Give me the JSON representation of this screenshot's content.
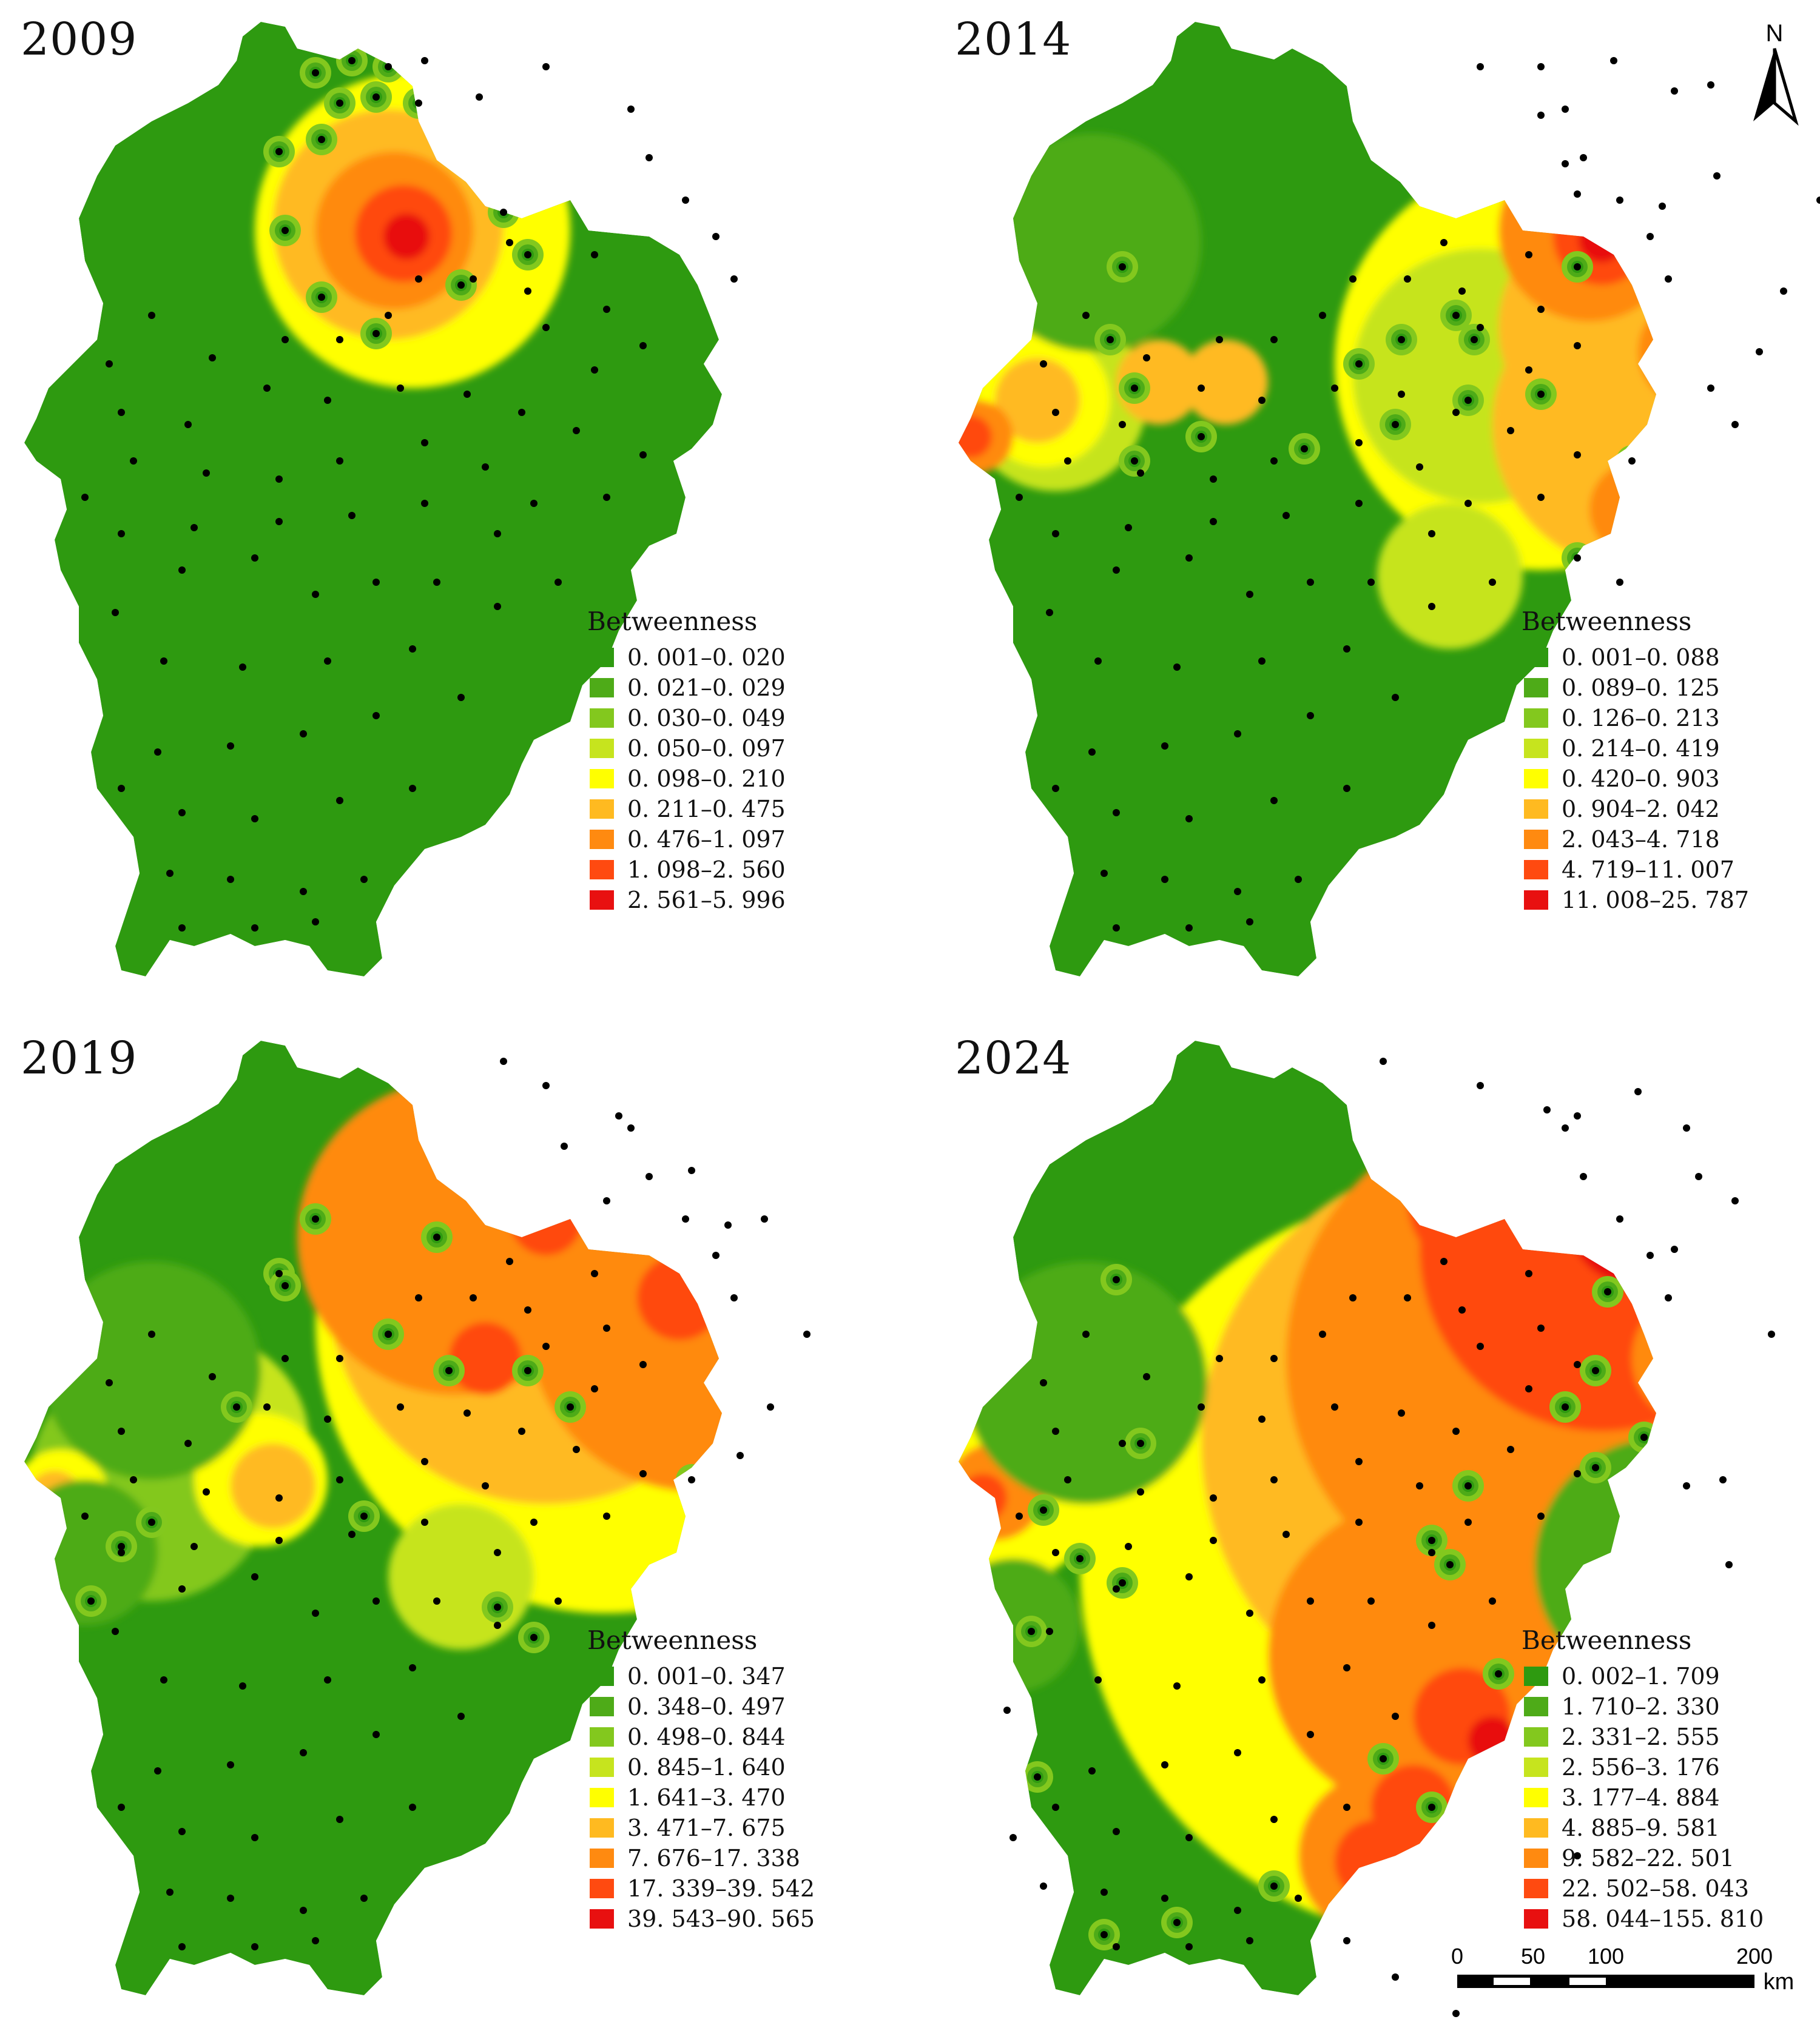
{
  "legend_title": "Betweenness",
  "colors": [
    "#2e9a10",
    "#4eab18",
    "#83c81e",
    "#c6e41e",
    "#ffff00",
    "#ffba20",
    "#ff8a10",
    "#ff4a10",
    "#e81010"
  ],
  "dot_color": "#000000",
  "panels": [
    {
      "year": "2009",
      "classes": [
        "0. 001–0. 020",
        "0. 021–0. 029",
        "0. 030–0. 049",
        "0. 050–0. 097",
        "0. 098–0. 210",
        "0. 211–0. 475",
        "0. 476–1. 097",
        "1. 098–2. 560",
        "2. 561–5. 996"
      ]
    },
    {
      "year": "2014",
      "classes": [
        "0. 001–0. 088",
        "0. 089–0. 125",
        "0. 126–0. 213",
        "0. 214–0. 419",
        "0. 420–0. 903",
        "0. 904–2. 042",
        "2. 043–4. 718",
        "4. 719–11. 007",
        "11. 008–25. 787"
      ]
    },
    {
      "year": "2019",
      "classes": [
        "0. 001–0. 347",
        "0. 348–0. 497",
        "0. 498–0. 844",
        "0. 845–1. 640",
        "1. 641–3. 470",
        "3. 471–7. 675",
        "7. 676–17. 338",
        "17. 339–39. 542",
        "39. 543–90. 565"
      ]
    },
    {
      "year": "2024",
      "classes": [
        "0. 002–1. 709",
        "1. 710–2. 330",
        "2. 331–2. 555",
        "2. 556–3. 176",
        "3. 177–4. 884",
        "4. 885–9. 581",
        "9. 582–22. 501",
        "22. 502–58. 043",
        "58. 044–155. 810"
      ]
    }
  ],
  "north_label": "N",
  "scale": {
    "ticks": [
      "0",
      "50",
      "100",
      "200"
    ],
    "unit": "km"
  }
}
